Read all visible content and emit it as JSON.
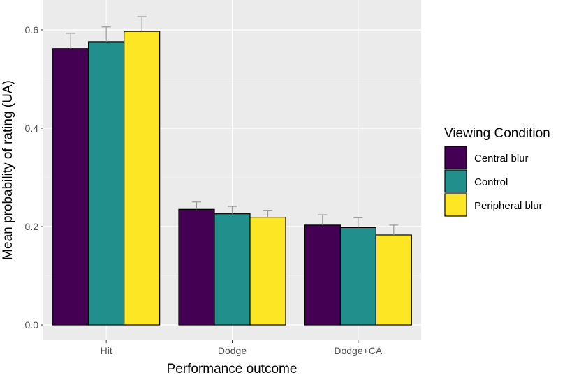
{
  "chart_data": {
    "type": "bar",
    "title": "",
    "xlabel": "Performance outcome",
    "ylabel": "Mean probability of rating (UA)",
    "categories": [
      "Hit",
      "Dodge",
      "Dodge+CA"
    ],
    "ylim": [
      0,
      0.63
    ],
    "yticks": [
      0.0,
      0.2,
      0.4,
      0.6
    ],
    "ytick_labels": [
      "0.0",
      "0.2",
      "0.4",
      "0.6"
    ],
    "grid": true,
    "legend": {
      "title": "Viewing Condition",
      "placement": "right"
    },
    "series": [
      {
        "name": "Central blur",
        "color": "#440154",
        "values": [
          0.562,
          0.235,
          0.203
        ],
        "errors": [
          0.031,
          0.015,
          0.021
        ]
      },
      {
        "name": "Control",
        "color": "#21908C",
        "values": [
          0.576,
          0.226,
          0.198
        ],
        "errors": [
          0.03,
          0.015,
          0.02
        ]
      },
      {
        "name": "Peripheral blur",
        "color": "#FDE725",
        "values": [
          0.597,
          0.219,
          0.183
        ],
        "errors": [
          0.03,
          0.014,
          0.02
        ]
      }
    ]
  }
}
